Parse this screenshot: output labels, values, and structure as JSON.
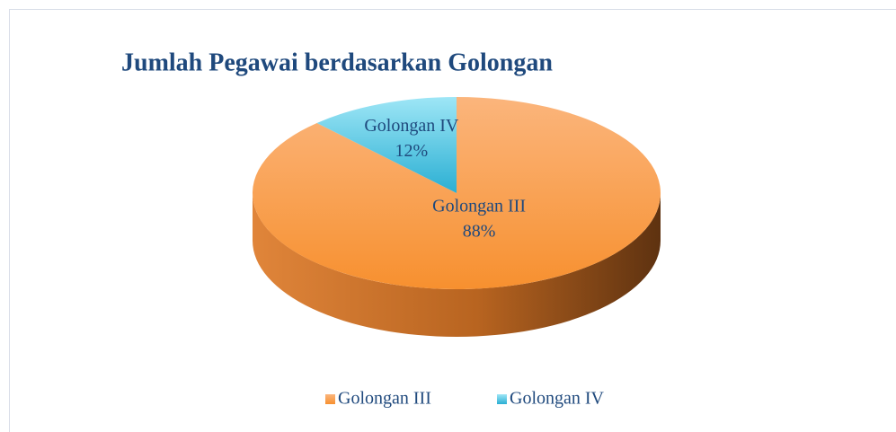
{
  "chart_data": {
    "type": "pie",
    "title": "Jumlah Pegawai berdasarkan Golongan",
    "categories": [
      "Golongan III",
      "Golongan IV"
    ],
    "values": [
      88,
      12
    ],
    "value_labels": [
      "88%",
      "12%"
    ],
    "colors": [
      "#f79646",
      "#4bc8e8"
    ],
    "legend": "bottom"
  }
}
